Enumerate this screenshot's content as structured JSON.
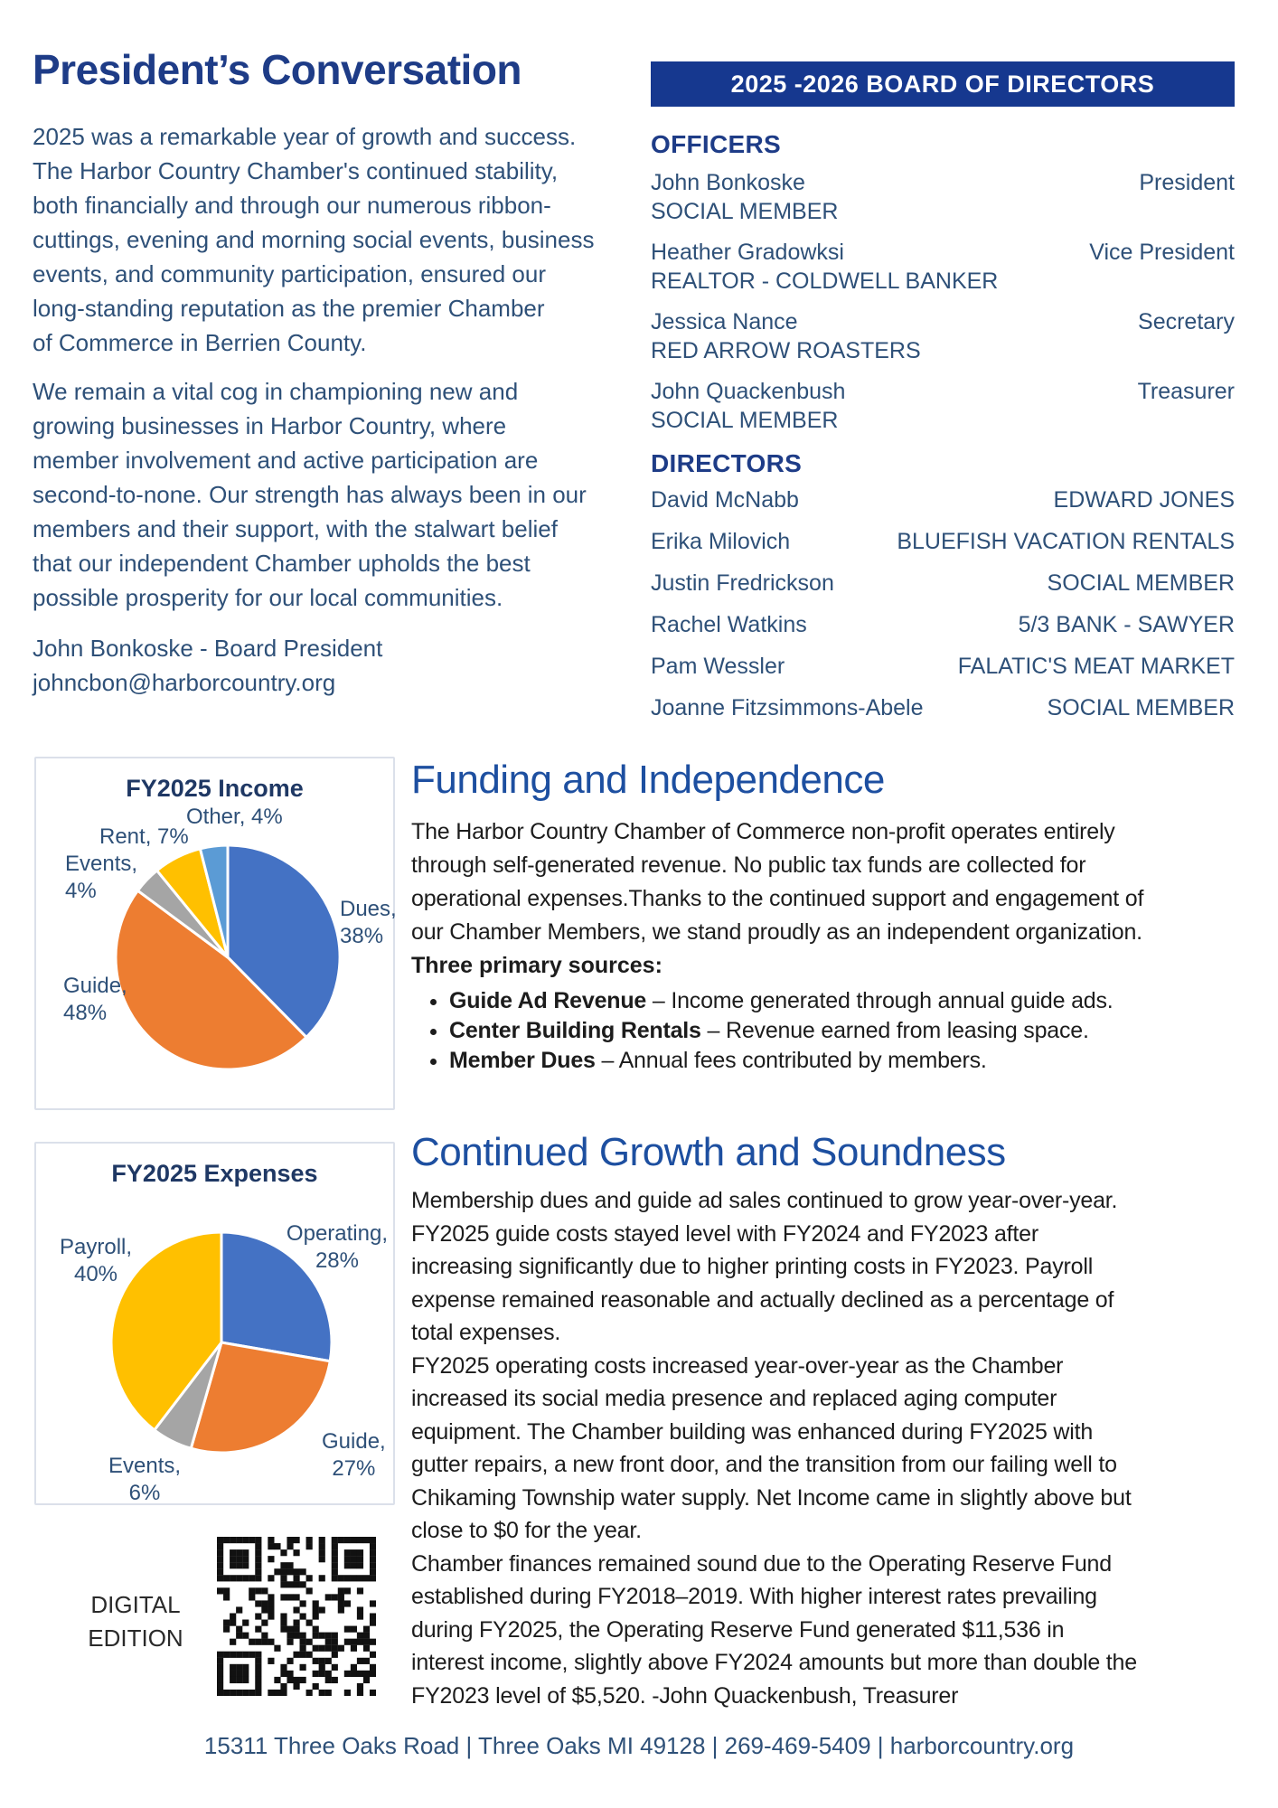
{
  "president": {
    "title": "President’s Conversation",
    "paragraph1": "2025 was a remarkable year of growth and success.\nThe Harbor Country Chamber's continued stability,\nboth financially and through our numerous ribbon-\ncuttings, evening and morning social events, business\nevents, and community participation, ensured our\nlong-standing reputation as the premier Chamber\nof Commerce in Berrien County.",
    "paragraph2": "We remain a vital cog in championing new and\ngrowing businesses in Harbor Country, where\nmember involvement and active participation are\nsecond-to-none.  Our strength has always been in our\nmembers and their support, with the stalwart belief\nthat our independent Chamber upholds the best\npossible prosperity for our local communities.",
    "signature_name": "John Bonkoske - Board President",
    "signature_email": "johncbon@harborcountry.org"
  },
  "board": {
    "banner": "2025 -2026 BOARD OF DIRECTORS",
    "officers_heading": "OFFICERS",
    "officers": [
      {
        "name": "John Bonkoske",
        "org": "SOCIAL MEMBER",
        "role": "President"
      },
      {
        "name": "Heather Gradowksi",
        "org": "REALTOR - COLDWELL BANKER",
        "role": "Vice President"
      },
      {
        "name": "Jessica Nance",
        "org": "RED ARROW ROASTERS",
        "role": "Secretary"
      },
      {
        "name": "John Quackenbush",
        "org": "SOCIAL MEMBER",
        "role": "Treasurer"
      }
    ],
    "directors_heading": "DIRECTORS",
    "directors": [
      {
        "name": "David McNabb",
        "org": "EDWARD JONES"
      },
      {
        "name": "Erika Milovich",
        "org": "BLUEFISH VACATION RENTALS"
      },
      {
        "name": "Justin Fredrickson",
        "org": "SOCIAL MEMBER"
      },
      {
        "name": "Rachel Watkins",
        "org": "5/3 BANK - SAWYER"
      },
      {
        "name": "Pam Wessler",
        "org": "FALATIC'S MEAT MARKET"
      },
      {
        "name": "Joanne Fitzsimmons-Abele",
        "org": "SOCIAL MEMBER"
      }
    ]
  },
  "funding": {
    "heading": "Funding and Independence",
    "body": "The Harbor Country Chamber of Commerce non-profit operates entirely\nthrough self-generated revenue. No public tax funds are collected for\noperational expenses.Thanks to the continued support and engagement of\nour Chamber Members, we stand proudly as an independent organization.",
    "sources_label": "Three primary sources:",
    "bullets": [
      {
        "lead": "Guide Ad Revenue",
        "rest": " – Income generated through annual guide ads."
      },
      {
        "lead": "Center Building Rentals",
        "rest": " – Revenue earned from leasing space."
      },
      {
        "lead": "Member Dues",
        "rest": " – Annual fees contributed by members."
      }
    ]
  },
  "growth": {
    "heading": "Continued Growth and Soundness",
    "body": "Membership dues and guide ad sales continued to grow year-over-year.\nFY2025 guide costs stayed level with FY2024 and FY2023 after\nincreasing significantly due to higher printing costs in FY2023. Payroll\nexpense remained reasonable and actually declined as a percentage of\ntotal expenses.\nFY2025 operating costs increased year-over-year as the Chamber\nincreased its social media presence and replaced aging computer\nequipment. The Chamber building was enhanced during FY2025 with\ngutter repairs, a new front door, and the transition from our failing well to\nChikaming Township water supply. Net Income came in slightly above but\nclose to $0 for the year.\nChamber finances remained sound due to the Operating Reserve Fund\nestablished during FY2018–2019. With higher interest rates prevailing\nduring FY2025, the Operating Reserve Fund generated $11,536 in\ninterest income, slightly above FY2024 amounts but more than double the\nFY2023 level of $5,520. -John Quackenbush, Treasurer"
  },
  "digital_edition": {
    "line1": "DIGITAL",
    "line2": "EDITION"
  },
  "footer": {
    "text": "15311 Three Oaks Road | Three Oaks MI 49128 | 269-469-5409 | harborcountry.org"
  },
  "colors": {
    "banner_bg": "#16388f",
    "heading_navy": "#1e3c87",
    "section_heading_blue": "#1d4fa0",
    "steel_text": "#2e5078",
    "chart_title": "#1f3864"
  },
  "chart_data": [
    {
      "type": "pie",
      "title": "FY2025 Income",
      "categories": [
        "Dues",
        "Guide",
        "Events",
        "Rent",
        "Other"
      ],
      "values": [
        38,
        48,
        4,
        7,
        4
      ],
      "unit": "percent",
      "colors": [
        "#4472C4",
        "#ED7D31",
        "#A5A5A5",
        "#FFC000",
        "#5B9BD5"
      ],
      "labels": [
        "Dues,\n38%",
        "Guide,\n48%",
        "Events,\n4%",
        "Rent, 7%",
        "Other, 4%"
      ],
      "legend": "none",
      "label_position": "outside",
      "start_angle_deg": 0,
      "direction": "clockwise"
    },
    {
      "type": "pie",
      "title": "FY2025 Expenses",
      "categories": [
        "Operating",
        "Guide",
        "Events",
        "Payroll"
      ],
      "values": [
        28,
        27,
        6,
        40
      ],
      "unit": "percent",
      "colors": [
        "#4472C4",
        "#ED7D31",
        "#A5A5A5",
        "#FFC000"
      ],
      "labels": [
        "Operating,\n28%",
        "Guide,\n27%",
        "Events,\n6%",
        "Payroll,\n40%"
      ],
      "legend": "none",
      "label_position": "outside",
      "start_angle_deg": 0,
      "direction": "clockwise"
    }
  ]
}
